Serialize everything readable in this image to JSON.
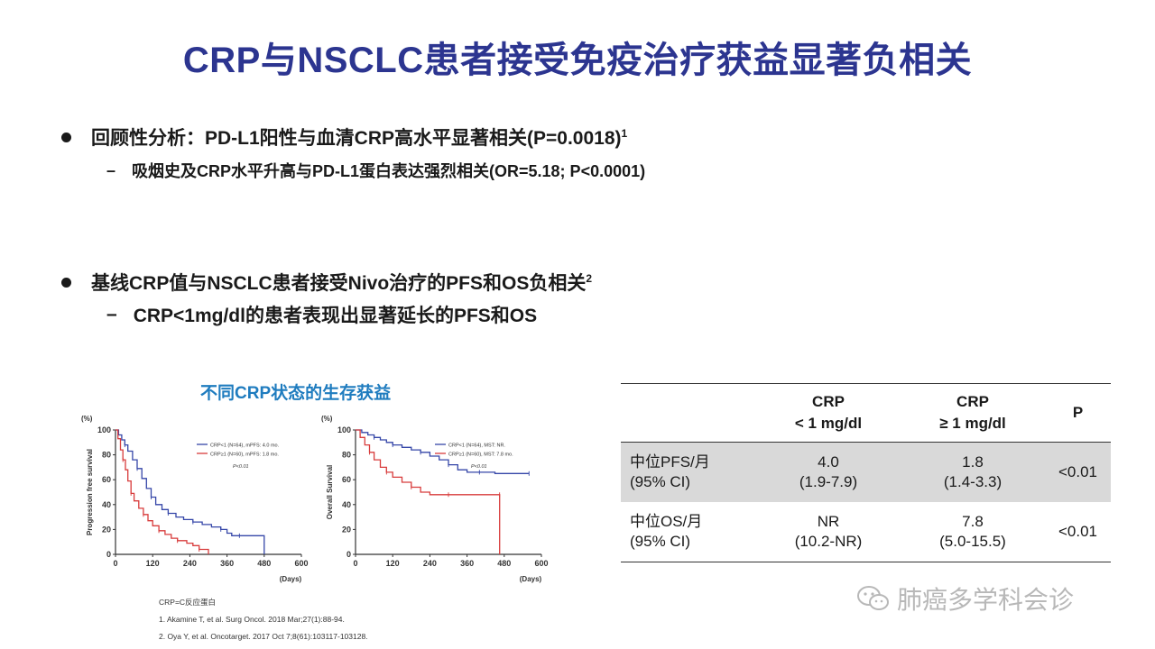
{
  "title": "CRP与NSCLC患者接受免疫治疗获益显著负相关",
  "bullets": [
    {
      "text": "回顾性分析：PD-L1阳性与血清CRP高水平显著相关(P=0.0018)",
      "sup": "1",
      "sub": "吸烟史及CRP水平升高与PD-L1蛋白表达强烈相关(OR=5.18;  P<0.0001)"
    },
    {
      "text": "基线CRP值与NSCLC患者接受Nivo治疗的PFS和OS负相关",
      "sup": "2",
      "sub": "CRP<1mg/dl的患者表现出显著延长的PFS和OS"
    }
  ],
  "km_title": "不同CRP状态的生存获益",
  "chart_data": [
    {
      "type": "line",
      "ylabel": "Progression free survival",
      "yunit": "(%)",
      "xunit": "(Days)",
      "xticks": [
        0,
        120,
        240,
        360,
        480,
        600
      ],
      "yticks": [
        0,
        20,
        40,
        60,
        80,
        100
      ],
      "xlim": [
        0,
        600
      ],
      "ylim": [
        0,
        100
      ],
      "annotation": "P<0.01",
      "series": [
        {
          "name": "CRP<1 (N=64), mPFS: 4.0 mo.",
          "color": "#3546a8",
          "points": [
            [
              0,
              100
            ],
            [
              10,
              96
            ],
            [
              20,
              92
            ],
            [
              30,
              88
            ],
            [
              40,
              83
            ],
            [
              55,
              76
            ],
            [
              70,
              69
            ],
            [
              85,
              61
            ],
            [
              100,
              53
            ],
            [
              115,
              46
            ],
            [
              130,
              40
            ],
            [
              150,
              36
            ],
            [
              170,
              33
            ],
            [
              195,
              30
            ],
            [
              220,
              28
            ],
            [
              250,
              26
            ],
            [
              280,
              24
            ],
            [
              310,
              22
            ],
            [
              340,
              20
            ],
            [
              360,
              17
            ],
            [
              375,
              15
            ],
            [
              400,
              15
            ],
            [
              430,
              15
            ],
            [
              480,
              15
            ],
            [
              480,
              0
            ]
          ]
        },
        {
          "name": "CRP≥1 (N=60), mPFS: 1.8 mo.",
          "color": "#d83c3c",
          "points": [
            [
              0,
              100
            ],
            [
              8,
              93
            ],
            [
              16,
              84
            ],
            [
              24,
              76
            ],
            [
              32,
              68
            ],
            [
              40,
              59
            ],
            [
              50,
              49
            ],
            [
              60,
              43
            ],
            [
              75,
              37
            ],
            [
              90,
              32
            ],
            [
              105,
              27
            ],
            [
              120,
              23
            ],
            [
              140,
              19
            ],
            [
              160,
              16
            ],
            [
              180,
              13
            ],
            [
              200,
              11
            ],
            [
              230,
              9
            ],
            [
              250,
              7
            ],
            [
              270,
              4
            ],
            [
              300,
              4
            ],
            [
              300,
              0
            ]
          ]
        }
      ]
    },
    {
      "type": "line",
      "ylabel": "Overall Survival",
      "yunit": "(%)",
      "xunit": "(Days)",
      "xticks": [
        0,
        120,
        240,
        360,
        480,
        600
      ],
      "yticks": [
        0,
        20,
        40,
        60,
        80,
        100
      ],
      "xlim": [
        0,
        600
      ],
      "ylim": [
        0,
        100
      ],
      "annotation": "P<0.01",
      "series": [
        {
          "name": "CRP<1 (N=64), MST: NR.",
          "color": "#3546a8",
          "points": [
            [
              0,
              100
            ],
            [
              20,
              98
            ],
            [
              40,
              96
            ],
            [
              60,
              94
            ],
            [
              80,
              92
            ],
            [
              100,
              90
            ],
            [
              120,
              88
            ],
            [
              150,
              86
            ],
            [
              180,
              84
            ],
            [
              210,
              82
            ],
            [
              240,
              79
            ],
            [
              270,
              76
            ],
            [
              300,
              72
            ],
            [
              330,
              68
            ],
            [
              360,
              66
            ],
            [
              400,
              66
            ],
            [
              450,
              65
            ],
            [
              500,
              65
            ],
            [
              560,
              65
            ]
          ]
        },
        {
          "name": "CRP≥1 (N=60), MST: 7.8 mo.",
          "color": "#d83c3c",
          "points": [
            [
              0,
              100
            ],
            [
              15,
              94
            ],
            [
              30,
              88
            ],
            [
              45,
              82
            ],
            [
              60,
              76
            ],
            [
              80,
              70
            ],
            [
              100,
              66
            ],
            [
              120,
              62
            ],
            [
              150,
              58
            ],
            [
              180,
              54
            ],
            [
              210,
              50
            ],
            [
              240,
              48
            ],
            [
              300,
              48
            ],
            [
              360,
              48
            ],
            [
              400,
              48
            ],
            [
              465,
              48
            ],
            [
              465,
              0
            ]
          ]
        }
      ]
    }
  ],
  "footnotes": [
    "CRP=C反应蛋白",
    "1. Akamine T, et al. Surg Oncol. 2018 Mar;27(1):88-94.",
    "2. Oya Y, et al. Oncotarget. 2017 Oct 7;8(61):103117-103128."
  ],
  "table": {
    "headers": [
      {
        "l1": "",
        "l2": ""
      },
      {
        "l1": "CRP",
        "l2": "< 1 mg/dl"
      },
      {
        "l1": "CRP",
        "l2": "≥ 1 mg/dl"
      },
      {
        "l1": "P",
        "l2": ""
      }
    ],
    "rows": [
      {
        "label1": "中位PFS/月",
        "label2": "(95% CI)",
        "c1a": "4.0",
        "c1b": "(1.9-7.9)",
        "c2a": "1.8",
        "c2b": "(1.4-3.3)",
        "p": "<0.01"
      },
      {
        "label1": "中位OS/月",
        "label2": "(95% CI)",
        "c1a": "NR",
        "c1b": "(10.2-NR)",
        "c2a": "7.8",
        "c2b": "(5.0-15.5)",
        "p": "<0.01"
      }
    ]
  },
  "watermark": "肺癌多学科会诊",
  "colors": {
    "title": "#2c3590",
    "km_title": "#1f7cbf",
    "series_low": "#3546a8",
    "series_high": "#d83c3c"
  }
}
